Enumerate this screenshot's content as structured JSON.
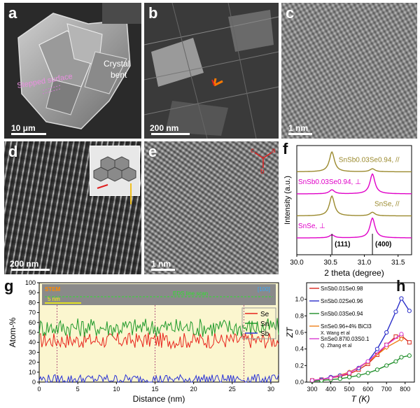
{
  "panels": {
    "a": {
      "label": "a",
      "annot_stepped": "Stepped surface",
      "annot_bent_1": "Crystal",
      "annot_bent_2": "bent",
      "scale": "10 μm"
    },
    "b": {
      "label": "b",
      "scale": "200 nm"
    },
    "c": {
      "label": "c",
      "scale": "1 nm"
    },
    "d": {
      "label": "d",
      "scale": "200 nm"
    },
    "e": {
      "label": "e",
      "scale": "1 nm",
      "axes": [
        "c",
        "a",
        "b"
      ]
    },
    "f": {
      "label": "f"
    },
    "g": {
      "label": "g",
      "inset_tag": "STEM",
      "inset_dir": "[100]",
      "inset_scale": "5 nm",
      "inset_line": "EDS line scan"
    },
    "h": {
      "label": "h",
      "ref1": "X. Wang et al",
      "ref2": "Q. Zhang et al"
    }
  },
  "chart_data": [
    {
      "panel": "f",
      "type": "line",
      "xlabel": "2 theta (degree)",
      "ylabel": "Intensity (a.u.)",
      "xlim": [
        30.0,
        31.7
      ],
      "xticks": [
        30.0,
        30.5,
        31.0,
        31.5
      ],
      "peak_labels": [
        {
          "text": "(111)",
          "x": 30.52
        },
        {
          "text": "(400)",
          "x": 31.12
        }
      ],
      "series": [
        {
          "name": "SnSb0.03Se0.94, //",
          "color": "#9b8a2e",
          "peaks": [
            {
              "x": 30.52,
              "h": 1.0
            },
            {
              "x": 31.12,
              "h": 0.15
            }
          ]
        },
        {
          "name": "SnSb0.03Se0.94, ⊥",
          "color": "#e000c8",
          "peaks": [
            {
              "x": 30.52,
              "h": 0.2
            },
            {
              "x": 31.12,
              "h": 1.0
            }
          ]
        },
        {
          "name": "SnSe, //",
          "color": "#9b8a2e",
          "peaks": [
            {
              "x": 30.52,
              "h": 1.0
            },
            {
              "x": 31.12,
              "h": 0.18
            }
          ]
        },
        {
          "name": "SnSe, ⊥",
          "color": "#e000c8",
          "peaks": [
            {
              "x": 30.52,
              "h": 0.15
            },
            {
              "x": 31.12,
              "h": 1.0
            }
          ]
        }
      ]
    },
    {
      "panel": "g",
      "type": "line",
      "xlabel": "Distance (nm)",
      "ylabel": "Atom-%",
      "xlim": [
        0,
        31
      ],
      "ylim": [
        0,
        100
      ],
      "xticks": [
        0,
        5,
        10,
        15,
        20,
        25,
        30
      ],
      "yticks": [
        0,
        10,
        20,
        30,
        40,
        50,
        60,
        70,
        80,
        90,
        100
      ],
      "markers": [
        2.3,
        15.0,
        26.5
      ],
      "series": [
        {
          "name": "Se",
          "color": "#e8241c",
          "mean": 42,
          "amp": 5
        },
        {
          "name": "Sn",
          "color": "#1f9a2a",
          "mean": 55,
          "amp": 6
        },
        {
          "name": "Sb",
          "color": "#2b34d6",
          "mean": 3,
          "amp": 3
        }
      ]
    },
    {
      "panel": "h",
      "type": "line",
      "xlabel": "T (K)",
      "ylabel": "ZT",
      "xlim": [
        270,
        850
      ],
      "ylim": [
        0,
        1.2
      ],
      "xticks": [
        300,
        400,
        500,
        600,
        700,
        800
      ],
      "yticks": [
        0.0,
        0.2,
        0.4,
        0.6,
        0.8,
        1.0
      ],
      "series": [
        {
          "name": "SnSb0.01Se0.98",
          "color": "#d8281e",
          "marker": "square",
          "x": [
            300,
            350,
            400,
            450,
            500,
            550,
            600,
            650,
            700,
            750,
            780,
            823
          ],
          "y": [
            0.02,
            0.03,
            0.05,
            0.07,
            0.1,
            0.15,
            0.22,
            0.33,
            0.45,
            0.55,
            0.56,
            0.48
          ]
        },
        {
          "name": "SnSb0.02Se0.96",
          "color": "#2a2ec9",
          "marker": "circle",
          "x": [
            300,
            350,
            400,
            450,
            500,
            550,
            600,
            650,
            700,
            750,
            780,
            823
          ],
          "y": [
            0.02,
            0.03,
            0.06,
            0.08,
            0.12,
            0.17,
            0.25,
            0.4,
            0.6,
            0.85,
            1.01,
            0.86
          ]
        },
        {
          "name": "SnSb0.03Se0.94",
          "color": "#1f8f2a",
          "marker": "circle",
          "x": [
            300,
            350,
            400,
            450,
            500,
            550,
            600,
            650,
            700,
            750,
            780,
            823
          ],
          "y": [
            0.01,
            0.02,
            0.03,
            0.04,
            0.06,
            0.08,
            0.11,
            0.15,
            0.2,
            0.25,
            0.3,
            0.32
          ]
        },
        {
          "name": "SnSe0.96+4% BiCl3",
          "color": "#f07f1a",
          "marker": "diamond",
          "x": [
            300,
            400,
            500,
            600,
            700,
            780
          ],
          "y": [
            0.02,
            0.05,
            0.12,
            0.24,
            0.42,
            0.52
          ]
        },
        {
          "name": "SnSe0.87I0.03S0.1",
          "color": "#d93bd1",
          "marker": "circle",
          "x": [
            300,
            400,
            500,
            600,
            700,
            780
          ],
          "y": [
            0.02,
            0.05,
            0.11,
            0.25,
            0.45,
            0.58
          ]
        }
      ]
    }
  ]
}
